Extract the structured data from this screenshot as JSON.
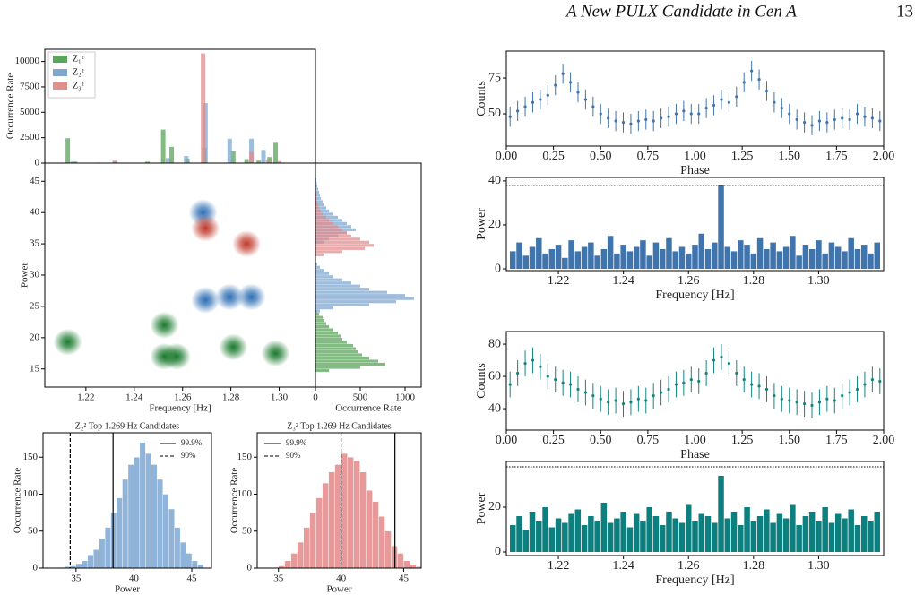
{
  "header": {
    "title": "A New PULX Candidate in Cen A",
    "page": "13"
  },
  "chart_data": [
    {
      "type": "bar",
      "ylabel": "Occurrence Rate",
      "xlim": [
        1.203,
        1.315
      ],
      "ylim": [
        0,
        11200
      ],
      "yticks": [
        0,
        2500,
        5000,
        7500,
        10000
      ],
      "legend": "upper left",
      "series": [
        {
          "name": "Z₁²",
          "color": "#5aa55a",
          "x": [
            1.2125,
            1.2155,
            1.2255,
            1.232,
            1.2455,
            1.252,
            1.2555,
            1.262,
            1.269,
            1.281,
            1.2865,
            1.2915,
            1.296,
            1.2985
          ],
          "values": [
            2450,
            150,
            50,
            130,
            150,
            3300,
            1600,
            450,
            1500,
            1200,
            400,
            250,
            600,
            2000
          ]
        },
        {
          "name": "Z₂²",
          "color": "#7fa7d0",
          "x": [
            1.2145,
            1.254,
            1.2615,
            1.2695,
            1.2795,
            1.2885,
            1.2935
          ],
          "values": [
            150,
            500,
            700,
            5900,
            2400,
            2400,
            1300
          ]
        },
        {
          "name": "Z₃²",
          "color": "#e08e8e",
          "x": [
            1.232,
            1.2685,
            1.2885,
            1.2955,
            1.3
          ],
          "values": [
            250,
            10800,
            1100,
            300,
            200
          ]
        }
      ]
    },
    {
      "type": "density",
      "xlabel": "Frequency [Hz]",
      "ylabel": "Power",
      "xlim": [
        1.203,
        1.315
      ],
      "ylim": [
        12.1,
        47.9
      ],
      "xticks": [
        1.22,
        1.24,
        1.26,
        1.28,
        {
          "value": 1.3,
          "label": "1.30"
        }
      ],
      "yticks": [
        15,
        20,
        25,
        30,
        35,
        40,
        45
      ],
      "series": [
        {
          "color": "#1b7a2e",
          "x": [
            1.2125,
            1.2525,
            1.2525,
            1.2575,
            1.281,
            1.2985
          ],
          "values": [
            19.3,
            22,
            17,
            17,
            18.5,
            17.5
          ]
        },
        {
          "color": "#2f6fb5",
          "x": [
            1.2685,
            1.2695,
            1.2795,
            1.2885
          ],
          "values": [
            40,
            26,
            26.5,
            26.5
          ]
        },
        {
          "color": "#c0392b",
          "x": [
            1.2695,
            1.2865
          ],
          "values": [
            37.5,
            35
          ]
        }
      ]
    },
    {
      "type": "hbar",
      "xlabel": "Occurrence Rate",
      "xlim": [
        0,
        1180
      ],
      "ylim": [
        12.1,
        47.9
      ],
      "xticks": [
        0,
        500,
        1000
      ],
      "series": [
        {
          "color": "#5aa55a",
          "y": [
            14.75,
            15.25,
            15.75,
            16.25,
            16.75,
            17.25,
            17.75,
            18.25,
            18.75,
            19.25,
            19.75,
            20.25,
            20.75,
            21.25,
            21.75,
            22.25,
            22.75,
            23.25,
            23.75,
            24.25
          ],
          "values": [
            150,
            500,
            780,
            700,
            600,
            520,
            480,
            450,
            420,
            350,
            300,
            280,
            250,
            200,
            150,
            120,
            100,
            80,
            40,
            20
          ]
        },
        {
          "color": "#7fa7d0",
          "y": [
            24.25,
            24.75,
            25.25,
            25.75,
            26.25,
            26.75,
            27.25,
            27.75,
            28.25,
            28.75,
            29.25,
            29.75,
            30.25,
            30.75,
            31.25,
            31.75,
            35.25,
            35.75,
            36.25,
            36.75,
            37.25,
            37.75,
            38.25,
            38.75,
            39.25,
            39.75,
            40.25,
            40.75,
            41.25,
            41.75,
            42.25,
            42.75,
            43.25,
            43.75,
            44.25,
            44.75,
            45.25
          ],
          "values": [
            50,
            200,
            600,
            900,
            1100,
            1000,
            800,
            600,
            500,
            400,
            300,
            200,
            150,
            100,
            50,
            20,
            100,
            150,
            250,
            350,
            450,
            400,
            350,
            300,
            250,
            200,
            150,
            120,
            100,
            80,
            60,
            50,
            40,
            30,
            20,
            15,
            10
          ]
        },
        {
          "color": "#e08e8e",
          "y": [
            33.25,
            33.75,
            34.25,
            34.75,
            35.25,
            35.75,
            36.25,
            36.75,
            37.25,
            37.75,
            38.25,
            38.75,
            39.25,
            39.75,
            40.25,
            40.75,
            41.25,
            41.75,
            42.25,
            42.75,
            43.25
          ],
          "values": [
            100,
            300,
            550,
            650,
            600,
            500,
            400,
            350,
            300,
            250,
            200,
            150,
            120,
            80,
            60,
            40,
            30,
            20,
            10,
            10,
            5
          ]
        }
      ]
    },
    {
      "type": "histogram",
      "title": "Z₂² Top 1.269 Hz Candidates",
      "xlabel": "Power",
      "ylabel": "Occurrence Rate",
      "color": "#8fb3d9",
      "xlim": [
        32.15,
        46.7
      ],
      "ylim": [
        0,
        183
      ],
      "xticks": [
        35,
        40,
        45
      ],
      "yticks": [
        0,
        50,
        100,
        150
      ],
      "legend": "upper right",
      "bins": [
        33.5,
        34,
        34.5,
        35,
        35.5,
        36,
        36.5,
        37,
        37.5,
        38,
        38.5,
        39,
        39.5,
        40,
        40.5,
        41,
        41.5,
        42,
        42.5,
        43,
        43.5,
        44,
        44.5,
        45,
        45.5,
        46
      ],
      "values": [
        1,
        2,
        3,
        6,
        10,
        18,
        25,
        40,
        55,
        75,
        95,
        120,
        140,
        150,
        170,
        155,
        140,
        120,
        100,
        80,
        55,
        35,
        20,
        10,
        5
      ],
      "lines": [
        {
          "name": "99.9%",
          "value": 38.2,
          "style": "solid"
        },
        {
          "name": "90%",
          "value": 34.5,
          "style": "dashed"
        }
      ]
    },
    {
      "type": "histogram",
      "title": "Z₃² Top 1.269 Hz Candidates",
      "xlabel": "Power",
      "ylabel": "Occurrence Rate",
      "color": "#e89a9a",
      "xlim": [
        33.3,
        46.4
      ],
      "ylim": [
        0,
        183
      ],
      "xticks": [
        35,
        40,
        45
      ],
      "yticks": [
        0,
        50,
        100,
        150
      ],
      "legend": "upper left",
      "bins": [
        35,
        35.5,
        36,
        36.5,
        37,
        37.5,
        38,
        38.5,
        39,
        39.5,
        40,
        40.5,
        41,
        41.5,
        42,
        42.5,
        43,
        43.5,
        44,
        44.5,
        45,
        45.5,
        46,
        46.5
      ],
      "values": [
        3,
        10,
        20,
        35,
        55,
        75,
        95,
        115,
        130,
        140,
        155,
        150,
        145,
        130,
        105,
        90,
        70,
        50,
        30,
        20,
        10,
        5,
        2
      ],
      "lines": [
        {
          "name": "99.9%",
          "value": 44.3,
          "style": "solid"
        },
        {
          "name": "90%",
          "value": 40,
          "style": "dashed"
        }
      ]
    },
    {
      "type": "errorbar",
      "xlabel": "Phase",
      "ylabel": "Counts",
      "color": "#3f74ad",
      "xlim": [
        0,
        2
      ],
      "ylim": [
        27.5,
        93.8
      ],
      "error": 7,
      "xticks": [
        {
          "value": 0,
          "label": "0.00"
        },
        {
          "value": 0.25,
          "label": "0.25"
        },
        {
          "value": 0.5,
          "label": "0.50"
        },
        {
          "value": 0.75,
          "label": "0.75"
        },
        {
          "value": 1,
          "label": "1.00"
        },
        {
          "value": 1.25,
          "label": "1.25"
        },
        {
          "value": 1.5,
          "label": "1.50"
        },
        {
          "value": 1.75,
          "label": "1.75"
        },
        {
          "value": 2,
          "label": "2.00"
        }
      ],
      "yticks": [
        50,
        75
      ],
      "x": [
        0.02,
        0.06,
        0.1,
        0.14,
        0.18,
        0.22,
        0.26,
        0.3,
        0.34,
        0.38,
        0.42,
        0.46,
        0.5,
        0.54,
        0.58,
        0.62,
        0.66,
        0.7,
        0.74,
        0.78,
        0.82,
        0.86,
        0.9,
        0.94,
        0.98,
        1.02,
        1.06,
        1.1,
        1.14,
        1.18,
        1.22,
        1.26,
        1.3,
        1.34,
        1.38,
        1.42,
        1.46,
        1.5,
        1.54,
        1.58,
        1.62,
        1.66,
        1.7,
        1.74,
        1.78,
        1.82,
        1.86,
        1.9,
        1.94,
        1.98
      ],
      "values": [
        48,
        52,
        55,
        58,
        60,
        63,
        70,
        78,
        72,
        65,
        60,
        55,
        50,
        47,
        45,
        44,
        43,
        45,
        46,
        45,
        47,
        48,
        50,
        52,
        50,
        50,
        54,
        56,
        60,
        58,
        62,
        72,
        80,
        74,
        66,
        58,
        54,
        50,
        46,
        44,
        42,
        45,
        44,
        46,
        47,
        46,
        50,
        48,
        47,
        45
      ]
    },
    {
      "type": "spectrum",
      "xlabel": "Frequency [Hz]",
      "ylabel": "Power",
      "color": "#3f74ad",
      "xlim": [
        1.204,
        1.32
      ],
      "ylim": [
        -0.8,
        41.6
      ],
      "threshold": 38,
      "xticks": [
        1.22,
        1.24,
        1.26,
        1.28,
        {
          "value": 1.3,
          "label": "1.30"
        }
      ],
      "yticks": [
        0,
        20,
        40
      ],
      "x": [
        1.206,
        1.208,
        1.21,
        1.212,
        1.214,
        1.216,
        1.218,
        1.22,
        1.222,
        1.224,
        1.226,
        1.228,
        1.23,
        1.232,
        1.234,
        1.236,
        1.238,
        1.24,
        1.242,
        1.244,
        1.246,
        1.248,
        1.25,
        1.252,
        1.254,
        1.256,
        1.258,
        1.26,
        1.262,
        1.264,
        1.266,
        1.268,
        1.27,
        1.272,
        1.274,
        1.276,
        1.278,
        1.28,
        1.282,
        1.284,
        1.286,
        1.288,
        1.29,
        1.292,
        1.294,
        1.296,
        1.298,
        1.3,
        1.302,
        1.304,
        1.306,
        1.308,
        1.31,
        1.312,
        1.314,
        1.316,
        1.318
      ],
      "values": [
        8,
        12,
        6,
        10,
        14,
        7,
        9,
        11,
        5,
        13,
        8,
        10,
        12,
        6,
        9,
        15,
        7,
        11,
        8,
        10,
        13,
        6,
        12,
        9,
        14,
        8,
        10,
        7,
        11,
        16,
        9,
        12,
        38,
        10,
        8,
        13,
        11,
        7,
        14,
        9,
        12,
        8,
        10,
        15,
        6,
        11,
        9,
        13,
        7,
        12,
        10,
        8,
        14,
        9,
        11,
        7,
        12
      ]
    },
    {
      "type": "errorbar",
      "xlabel": "Phase",
      "ylabel": "Counts",
      "color": "#13857f",
      "xlim": [
        0,
        2
      ],
      "ylim": [
        26.7,
        87.8
      ],
      "error": 8,
      "xticks": [
        {
          "value": 0,
          "label": "0.00"
        },
        {
          "value": 0.25,
          "label": "0.25"
        },
        {
          "value": 0.5,
          "label": "0.50"
        },
        {
          "value": 0.75,
          "label": "0.75"
        },
        {
          "value": 1,
          "label": "1.00"
        },
        {
          "value": 1.25,
          "label": "1.25"
        },
        {
          "value": 1.5,
          "label": "1.50"
        },
        {
          "value": 1.75,
          "label": "1.75"
        },
        {
          "value": 2,
          "label": "2.00"
        }
      ],
      "yticks": [
        40,
        60,
        80
      ],
      "x": [
        0.02,
        0.06,
        0.1,
        0.14,
        0.18,
        0.22,
        0.26,
        0.3,
        0.34,
        0.38,
        0.42,
        0.46,
        0.5,
        0.54,
        0.58,
        0.62,
        0.66,
        0.7,
        0.74,
        0.78,
        0.82,
        0.86,
        0.9,
        0.94,
        0.98,
        1.02,
        1.06,
        1.1,
        1.14,
        1.18,
        1.22,
        1.26,
        1.3,
        1.34,
        1.38,
        1.42,
        1.46,
        1.5,
        1.54,
        1.58,
        1.62,
        1.66,
        1.7,
        1.74,
        1.78,
        1.82,
        1.86,
        1.9,
        1.94,
        1.98
      ],
      "values": [
        55,
        62,
        68,
        70,
        66,
        60,
        58,
        56,
        55,
        52,
        50,
        48,
        46,
        44,
        45,
        43,
        44,
        46,
        45,
        48,
        50,
        52,
        55,
        56,
        58,
        57,
        62,
        70,
        72,
        68,
        62,
        58,
        55,
        54,
        52,
        48,
        46,
        45,
        44,
        43,
        42,
        44,
        46,
        45,
        48,
        50,
        52,
        55,
        58,
        57
      ]
    },
    {
      "type": "spectrum",
      "xlabel": "Frequency [Hz]",
      "ylabel": "Power",
      "color": "#0e7f7f",
      "xlim": [
        1.204,
        1.32
      ],
      "ylim": [
        -1.6,
        40.4
      ],
      "threshold": 38,
      "xticks": [
        1.22,
        1.24,
        1.26,
        1.28,
        {
          "value": 1.3,
          "label": "1.30"
        }
      ],
      "yticks": [
        0,
        20
      ],
      "x": [
        1.206,
        1.208,
        1.21,
        1.212,
        1.214,
        1.216,
        1.218,
        1.22,
        1.222,
        1.224,
        1.226,
        1.228,
        1.23,
        1.232,
        1.234,
        1.236,
        1.238,
        1.24,
        1.242,
        1.244,
        1.246,
        1.248,
        1.25,
        1.252,
        1.254,
        1.256,
        1.258,
        1.26,
        1.262,
        1.264,
        1.266,
        1.268,
        1.27,
        1.272,
        1.274,
        1.276,
        1.278,
        1.28,
        1.282,
        1.284,
        1.286,
        1.288,
        1.29,
        1.292,
        1.294,
        1.296,
        1.298,
        1.3,
        1.302,
        1.304,
        1.306,
        1.308,
        1.31,
        1.312,
        1.314,
        1.316,
        1.318
      ],
      "values": [
        12,
        16,
        10,
        18,
        14,
        20,
        11,
        15,
        13,
        17,
        19,
        12,
        16,
        14,
        22,
        13,
        15,
        18,
        11,
        17,
        14,
        20,
        16,
        12,
        18,
        15,
        13,
        21,
        14,
        17,
        16,
        13,
        34,
        15,
        18,
        12,
        20,
        14,
        16,
        19,
        13,
        17,
        15,
        21,
        12,
        16,
        18,
        14,
        20,
        13,
        17,
        15,
        19,
        12,
        16,
        14,
        18
      ]
    }
  ]
}
